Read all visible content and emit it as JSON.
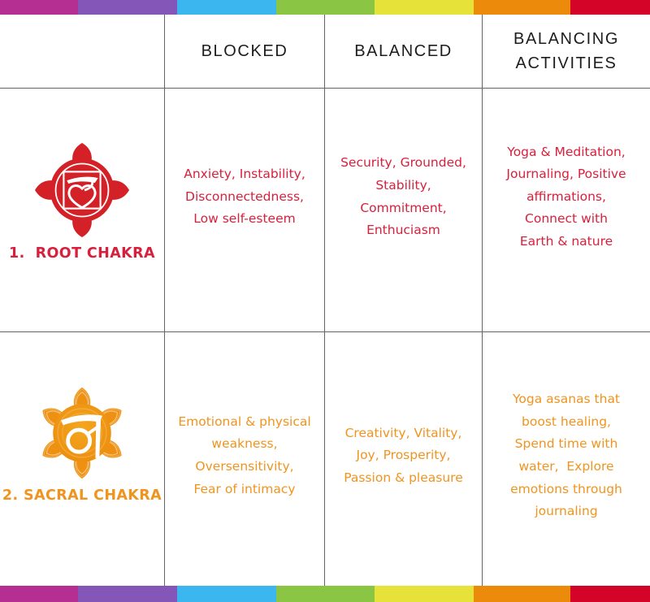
{
  "stripe_colors": [
    "#b52e91",
    "#8456b8",
    "#3cb6ee",
    "#8ac544",
    "#e6e23a",
    "#ec8a0c",
    "#d40429"
  ],
  "header": {
    "blocked": "BLOCKED",
    "balanced": "BALANCED",
    "activities": "BALANCING\nACTIVITIES"
  },
  "rows": [
    {
      "number_label": "1.  ROOT CHAKRA",
      "color": "#d8203c",
      "icon_color": "#d42127",
      "blocked": "Anxiety, Instability,\nDisconnectedness,\nLow self-esteem",
      "balanced": "Security, Grounded,\nStability,\nCommitment,\nEnthuciasm",
      "activities": "Yoga & Meditation,\nJournaling, Positive\naffirmations,\nConnect with\nEarth & nature"
    },
    {
      "number_label": "2. SACRAL CHAKRA",
      "color": "#f0941f",
      "icon_color": "#ee9112",
      "blocked": "Emotional & physical\nweakness,\nOversensitivity,\nFear of intimacy",
      "balanced": "Creativity, Vitality,\nJoy, Prosperity,\nPassion & pleasure",
      "activities": "Yoga asanas that\nboost healing,\nSpend time with\nwater,  Explore\nemotions through\njournaling"
    }
  ],
  "chart_data": {
    "type": "table",
    "columns": [
      "",
      "BLOCKED",
      "BALANCED",
      "BALANCING ACTIVITIES"
    ],
    "rows": [
      [
        "1. ROOT CHAKRA",
        "Anxiety, Instability, Disconnectedness, Low self-esteem",
        "Security, Grounded, Stability, Commitment, Enthuciasm",
        "Yoga & Meditation, Journaling, Positive affirmations, Connect with Earth & nature"
      ],
      [
        "2. SACRAL CHAKRA",
        "Emotional & physical weakness, Oversensitivity, Fear of intimacy",
        "Creativity, Vitality, Joy, Prosperity, Passion & pleasure",
        "Yoga asanas that boost healing, Spend time with water, Explore emotions through journaling"
      ]
    ],
    "layout": "rainbow stripe top and bottom; grid lines gray; row 1 styled red, row 2 styled orange"
  }
}
